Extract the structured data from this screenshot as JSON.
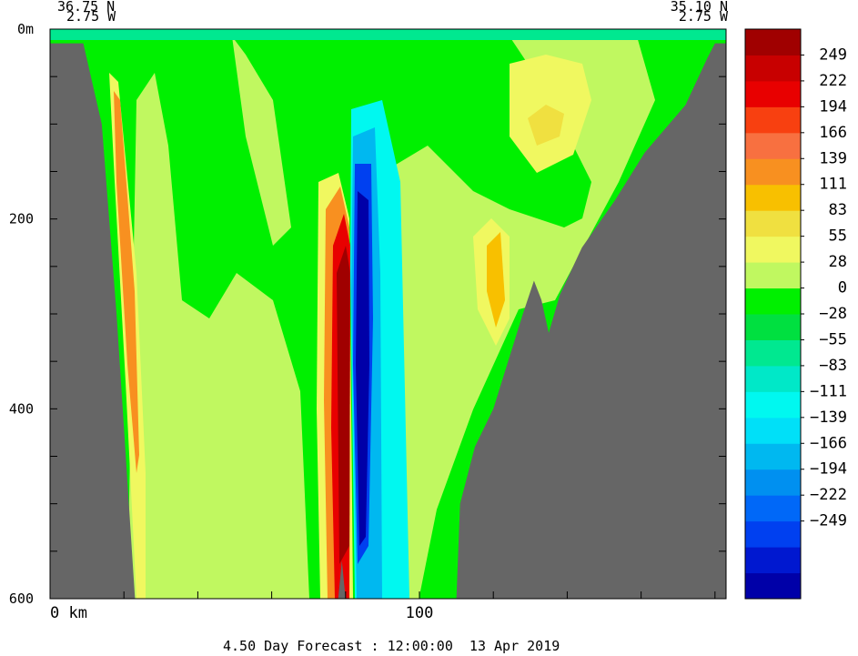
{
  "header": {
    "left_lat": "36.75 N",
    "left_lon": "2.75 W",
    "right_lat": "35.10 N",
    "right_lon": "2.75 W"
  },
  "footer": {
    "forecast": "4.50 Day Forecast : 12:00:00  13 Apr 2019"
  },
  "colors": {
    "land": "#666666",
    "levels": [
      "#0000a8",
      "#0018d0",
      "#0040f0",
      "#0068f8",
      "#0090f0",
      "#00b8f0",
      "#00e0f8",
      "#00f8f0",
      "#00e8c8",
      "#00e890",
      "#00e040",
      "#00f000",
      "#c0f860",
      "#f0f860",
      "#f0e040",
      "#f8c000",
      "#f89020",
      "#f87040",
      "#f84010",
      "#e80000",
      "#c80000",
      "#a00000"
    ]
  },
  "chart_data": {
    "type": "contour",
    "xlabel": "",
    "ylabel": "",
    "x_unit": "km",
    "y_unit": "m",
    "xlim": [
      0,
      183
    ],
    "ylim": [
      600,
      0
    ],
    "x_ticks": [
      {
        "value": 0,
        "label": "0 km"
      },
      {
        "value": 100,
        "label": "100"
      }
    ],
    "y_ticks": [
      {
        "value": 0,
        "label": "0m"
      },
      {
        "value": 200,
        "label": "200"
      },
      {
        "value": 400,
        "label": "400"
      },
      {
        "value": 600,
        "label": "600"
      }
    ],
    "colorbar": {
      "labels": [
        "249",
        "222",
        "194",
        "166",
        "139",
        "111",
        "83",
        "55",
        "28",
        "0",
        "−28",
        "−55",
        "−83",
        "−111",
        "−139",
        "−166",
        "−194",
        "−222",
        "−249"
      ]
    },
    "bathymetry": [
      {
        "x": 0,
        "depth": 15
      },
      {
        "x": 9,
        "depth": 15
      },
      {
        "x": 14,
        "depth": 100
      },
      {
        "x": 18,
        "depth": 300
      },
      {
        "x": 23,
        "depth": 600
      },
      {
        "x": 78,
        "depth": 600
      },
      {
        "x": 79,
        "depth": 560
      },
      {
        "x": 80,
        "depth": 600
      },
      {
        "x": 110,
        "depth": 600
      },
      {
        "x": 111,
        "depth": 500
      },
      {
        "x": 115,
        "depth": 440
      },
      {
        "x": 120,
        "depth": 400
      },
      {
        "x": 124,
        "depth": 350
      },
      {
        "x": 128,
        "depth": 300
      },
      {
        "x": 131,
        "depth": 265
      },
      {
        "x": 133,
        "depth": 285
      },
      {
        "x": 135,
        "depth": 320
      },
      {
        "x": 138,
        "depth": 280
      },
      {
        "x": 144,
        "depth": 230
      },
      {
        "x": 153,
        "depth": 180
      },
      {
        "x": 161,
        "depth": 130
      },
      {
        "x": 172,
        "depth": 80
      },
      {
        "x": 178,
        "depth": 30
      },
      {
        "x": 180,
        "depth": 15
      },
      {
        "x": 183,
        "depth": 15
      }
    ]
  }
}
